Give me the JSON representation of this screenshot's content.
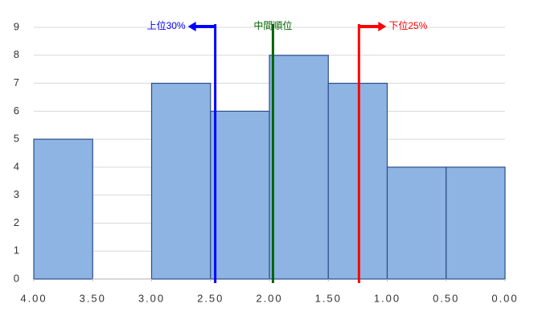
{
  "chart_data": {
    "type": "histogram",
    "bins": [
      4.0,
      3.5,
      3.0,
      2.5,
      2.0,
      1.5,
      1.0,
      0.5,
      0.0
    ],
    "values": [
      5,
      0,
      7,
      6,
      8,
      7,
      4,
      4
    ],
    "color": "#8db4e2",
    "edge_color": "#2e4e8a",
    "xlim": [
      4,
      0
    ],
    "xticks": [
      {
        "value": 4,
        "label": "4.00"
      },
      {
        "value": 3.5,
        "label": "3.50"
      },
      {
        "value": 3,
        "label": "3.00"
      },
      {
        "value": 2.5,
        "label": "2.50"
      },
      {
        "value": 2,
        "label": "2.00"
      },
      {
        "value": 1.5,
        "label": "1.50"
      },
      {
        "value": 1,
        "label": "1.00"
      },
      {
        "value": 0.5,
        "label": "0.50"
      },
      {
        "value": 0,
        "label": "0.00"
      }
    ],
    "ylim": [
      0,
      9
    ],
    "yticks": [
      0,
      1,
      2,
      3,
      4,
      5,
      6,
      7,
      8,
      9
    ],
    "grid": true,
    "annotations": [
      {
        "text": "上位30%",
        "x": 2.46,
        "color": "#0000ff",
        "arrow": "left"
      },
      {
        "text": "中間順位",
        "x": 1.97,
        "color": "#006400",
        "arrow": "none"
      },
      {
        "text": "下位25%",
        "x": 1.24,
        "color": "#ff0000",
        "arrow": "right"
      }
    ]
  }
}
